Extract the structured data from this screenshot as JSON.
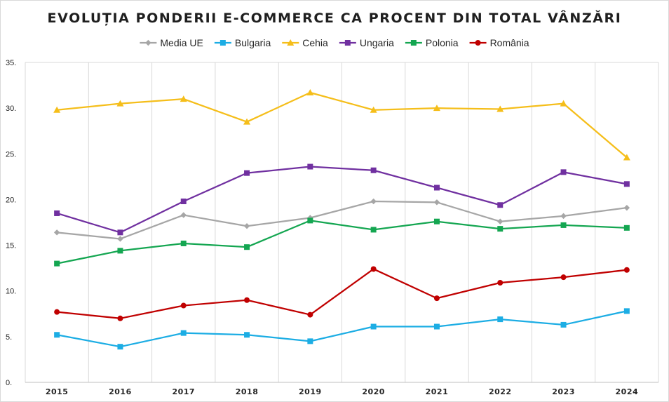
{
  "chart_data": {
    "type": "line",
    "title": "EVOLUȚIA PONDERII E-COMMERCE CA PROCENT DIN TOTAL VÂNZĂRI",
    "xlabel": "",
    "ylabel": "",
    "categories": [
      "2015",
      "2016",
      "2017",
      "2018",
      "2019",
      "2020",
      "2021",
      "2022",
      "2023",
      "2024"
    ],
    "ylim": [
      0,
      35
    ],
    "yticks": [
      {
        "value": 0,
        "label": "0."
      },
      {
        "value": 5,
        "label": "5."
      },
      {
        "value": 10,
        "label": "10."
      },
      {
        "value": 15,
        "label": "15."
      },
      {
        "value": 20,
        "label": "20."
      },
      {
        "value": 25,
        "label": "25."
      },
      {
        "value": 30,
        "label": "30."
      },
      {
        "value": 35,
        "label": "35."
      }
    ],
    "grid": "vertical",
    "legend_position": "top",
    "series": [
      {
        "name": "Media UE",
        "color": "#a6a6a6",
        "marker": "diamond",
        "values": [
          16.4,
          15.7,
          18.3,
          17.1,
          18.0,
          19.8,
          19.7,
          17.6,
          18.2,
          19.1
        ]
      },
      {
        "name": "Bulgaria",
        "color": "#1cade4",
        "marker": "square",
        "values": [
          5.2,
          3.9,
          5.4,
          5.2,
          4.5,
          6.1,
          6.1,
          6.9,
          6.3,
          7.8
        ]
      },
      {
        "name": "Cehia",
        "color": "#f5be1a",
        "marker": "triangle",
        "values": [
          29.8,
          30.5,
          31.0,
          28.5,
          31.7,
          29.8,
          30.0,
          29.9,
          30.5,
          24.6
        ]
      },
      {
        "name": "Ungaria",
        "color": "#7030a0",
        "marker": "square",
        "values": [
          18.5,
          16.4,
          19.8,
          22.9,
          23.6,
          23.2,
          21.3,
          19.4,
          23.0,
          21.7
        ]
      },
      {
        "name": "Polonia",
        "color": "#14a651",
        "marker": "square",
        "values": [
          13.0,
          14.4,
          15.2,
          14.8,
          17.7,
          16.7,
          17.6,
          16.8,
          17.2,
          16.9
        ]
      },
      {
        "name": "România",
        "color": "#c00000",
        "marker": "circle",
        "values": [
          7.7,
          7.0,
          8.4,
          9.0,
          7.4,
          12.4,
          9.2,
          10.9,
          11.5,
          12.3
        ]
      }
    ]
  }
}
